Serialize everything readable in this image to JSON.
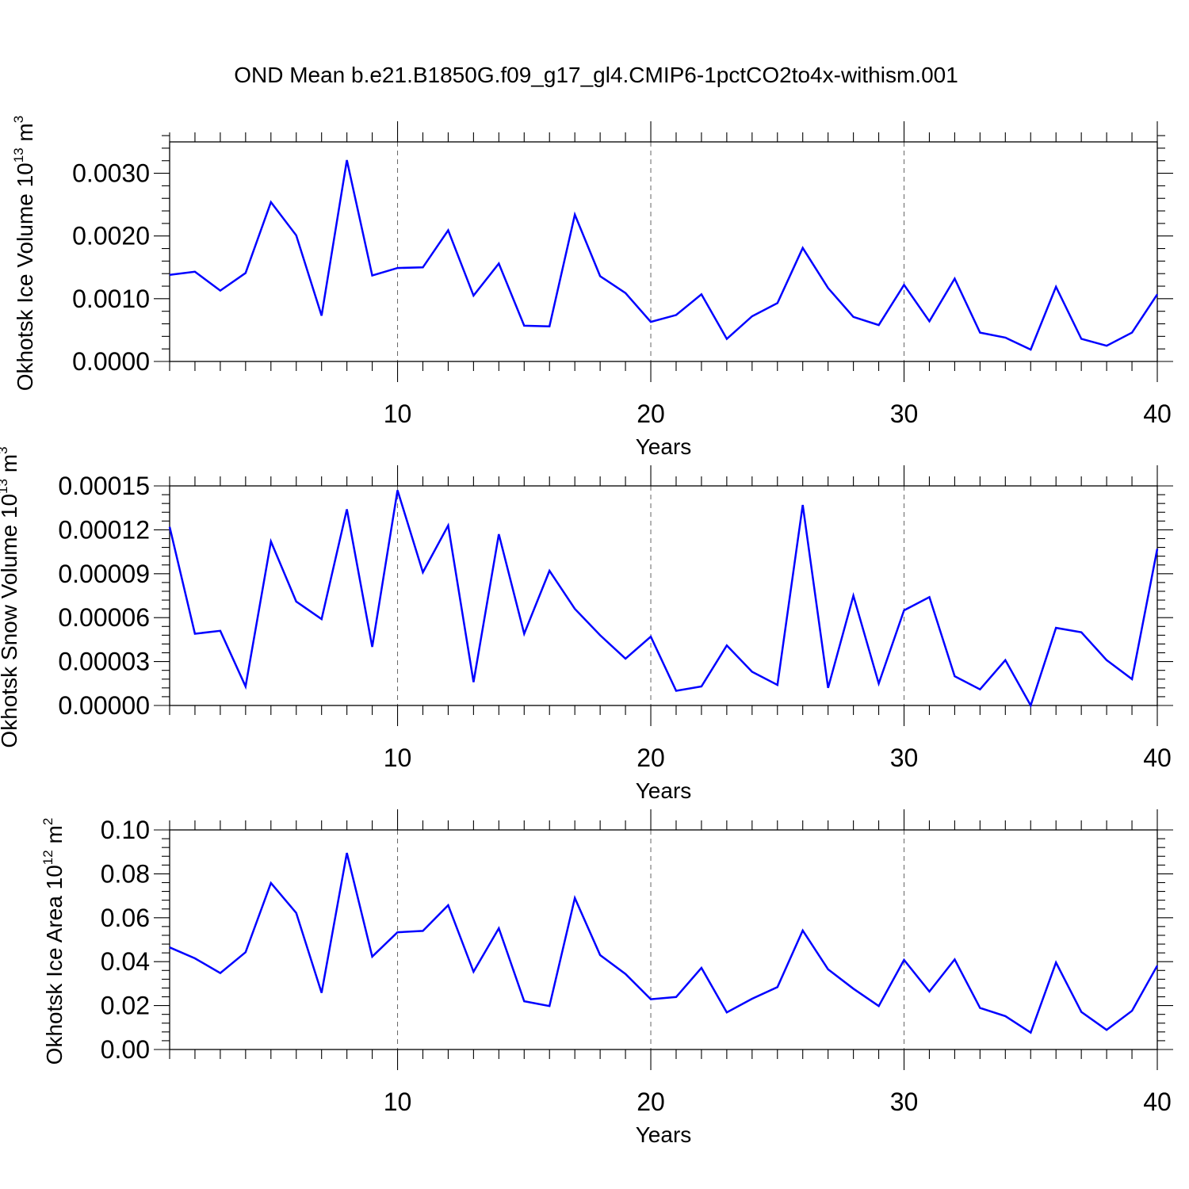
{
  "title": "OND Mean b.e21.B1850G.f09_g17_gl4.CMIP6-1pctCO2to4x-withism.001",
  "colors": {
    "series": "#0000ff",
    "axis": "#000000",
    "grid": "#666666"
  },
  "chart_data": [
    {
      "type": "line",
      "ylabel": {
        "text": "Okhotsk Ice Volume 10",
        "exp": "13",
        "unit": " m",
        "unit_exp": "3"
      },
      "xlabel": "Years",
      "xlim": [
        1,
        40
      ],
      "ylim": [
        0,
        0.0035
      ],
      "xticks": [
        10,
        20,
        30,
        40
      ],
      "xtick_labels": [
        "10",
        "20",
        "30",
        "40"
      ],
      "yticks": [
        0,
        0.001,
        0.002,
        0.003
      ],
      "ytick_labels": [
        "0.0000",
        "0.0010",
        "0.0020",
        "0.0030"
      ],
      "grid": "vertical dashed at major x ticks",
      "x": [
        1,
        2,
        3,
        4,
        5,
        6,
        7,
        8,
        9,
        10,
        11,
        12,
        13,
        14,
        15,
        16,
        17,
        18,
        19,
        20,
        21,
        22,
        23,
        24,
        25,
        26,
        27,
        28,
        29,
        30,
        31,
        32,
        33,
        34,
        35,
        36,
        37,
        38,
        39,
        40
      ],
      "y": [
        0.00138,
        0.00143,
        0.00113,
        0.00141,
        0.00254,
        0.00201,
        0.00073,
        0.00321,
        0.00137,
        0.00149,
        0.0015,
        0.00209,
        0.00105,
        0.00156,
        0.00057,
        0.00056,
        0.00234,
        0.00136,
        0.00109,
        0.00063,
        0.00074,
        0.00107,
        0.00036,
        0.00072,
        0.00093,
        0.00181,
        0.00117,
        0.00071,
        0.00058,
        0.00122,
        0.00064,
        0.00132,
        0.00046,
        0.00038,
        0.00019,
        0.00119,
        0.00036,
        0.00025,
        0.00046,
        0.00107
      ]
    },
    {
      "type": "line",
      "ylabel": {
        "text": "Okhotsk Snow Volume 10",
        "exp": "13",
        "unit": " m",
        "unit_exp": "3"
      },
      "xlabel": "Years",
      "xlim": [
        1,
        40
      ],
      "ylim": [
        0,
        0.00015
      ],
      "xticks": [
        10,
        20,
        30,
        40
      ],
      "xtick_labels": [
        "10",
        "20",
        "30",
        "40"
      ],
      "yticks": [
        0,
        3e-05,
        6e-05,
        9e-05,
        0.00012,
        0.00015
      ],
      "ytick_labels": [
        "0.00000",
        "0.00003",
        "0.00006",
        "0.00009",
        "0.00012",
        "0.00015"
      ],
      "grid": "vertical dashed at major x ticks",
      "x": [
        1,
        2,
        3,
        4,
        5,
        6,
        7,
        8,
        9,
        10,
        11,
        12,
        13,
        14,
        15,
        16,
        17,
        18,
        19,
        20,
        21,
        22,
        23,
        24,
        25,
        26,
        27,
        28,
        29,
        30,
        31,
        32,
        33,
        34,
        35,
        36,
        37,
        38,
        39,
        40
      ],
      "y": [
        0.000122,
        4.9e-05,
        5.1e-05,
        1.3e-05,
        0.000112,
        7.1e-05,
        5.9e-05,
        0.000134,
        4e-05,
        0.000147,
        9.1e-05,
        0.000123,
        1.6e-05,
        0.000117,
        4.9e-05,
        9.2e-05,
        6.6e-05,
        4.8e-05,
        3.2e-05,
        4.7e-05,
        1e-05,
        1.3e-05,
        4.1e-05,
        2.3e-05,
        1.4e-05,
        0.000137,
        1.2e-05,
        7.5e-05,
        1.5e-05,
        6.5e-05,
        7.4e-05,
        2e-05,
        1.1e-05,
        3.1e-05,
        0.0,
        5.3e-05,
        5e-05,
        3.1e-05,
        1.8e-05,
        0.000107
      ]
    },
    {
      "type": "line",
      "ylabel": {
        "text": "Okhotsk Ice Area 10",
        "exp": "12",
        "unit": " m",
        "unit_exp": "2"
      },
      "xlabel": "Years",
      "xlim": [
        1,
        40
      ],
      "ylim": [
        0,
        0.1
      ],
      "xticks": [
        10,
        20,
        30,
        40
      ],
      "xtick_labels": [
        "10",
        "20",
        "30",
        "40"
      ],
      "yticks": [
        0,
        0.02,
        0.04,
        0.06,
        0.08,
        0.1
      ],
      "ytick_labels": [
        "0.00",
        "0.02",
        "0.04",
        "0.06",
        "0.08",
        "0.10"
      ],
      "grid": "vertical dashed at major x ticks",
      "x": [
        1,
        2,
        3,
        4,
        5,
        6,
        7,
        8,
        9,
        10,
        11,
        12,
        13,
        14,
        15,
        16,
        17,
        18,
        19,
        20,
        21,
        22,
        23,
        24,
        25,
        26,
        27,
        28,
        29,
        30,
        31,
        32,
        33,
        34,
        35,
        36,
        37,
        38,
        39,
        40
      ],
      "y": [
        0.0465,
        0.0415,
        0.0348,
        0.0443,
        0.0758,
        0.0622,
        0.0258,
        0.0895,
        0.0423,
        0.0534,
        0.054,
        0.0657,
        0.0354,
        0.0552,
        0.022,
        0.0198,
        0.069,
        0.043,
        0.0344,
        0.0229,
        0.0239,
        0.0372,
        0.0169,
        0.0231,
        0.0284,
        0.0542,
        0.0365,
        0.0277,
        0.0198,
        0.0408,
        0.0264,
        0.041,
        0.0189,
        0.0152,
        0.0077,
        0.0396,
        0.0171,
        0.0089,
        0.0176,
        0.0382
      ]
    }
  ]
}
